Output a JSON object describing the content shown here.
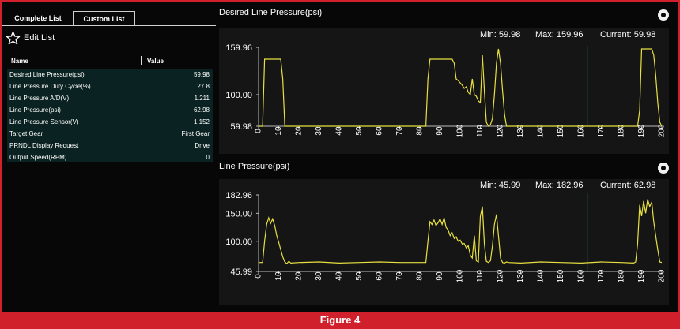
{
  "tabs": {
    "complete": "Complete List",
    "custom": "Custom List"
  },
  "edit_list": "Edit List",
  "list_header": {
    "name": "Name",
    "value": "Value"
  },
  "params": [
    {
      "name": "Desired Line Pressure(psi)",
      "value": "59.98"
    },
    {
      "name": "Line Pressure Duty Cycle(%)",
      "value": "27.8"
    },
    {
      "name": "Line Pressure A/D(V)",
      "value": "1.211"
    },
    {
      "name": "Line Pressure(psi)",
      "value": "62.98"
    },
    {
      "name": "Line Pressure Sensor(V)",
      "value": "1.152"
    },
    {
      "name": "Target Gear",
      "value": "First Gear"
    },
    {
      "name": "PRNDL Display Request",
      "value": "Drive"
    },
    {
      "name": "Output Speed(RPM)",
      "value": "0"
    }
  ],
  "caption": "Figure 4",
  "colors": {
    "frame": "#d0202c",
    "line": "#e8e040",
    "cursor": "#2aa6a6",
    "panel": "#151515",
    "list_bg": "#0a2221"
  },
  "chart_data": [
    {
      "type": "line",
      "title": "Desired Line Pressure(psi)",
      "stats": {
        "min": "Min: 59.98",
        "max": "Max: 159.96",
        "current": "Current: 59.98"
      },
      "ylim": [
        59.98,
        159.96
      ],
      "yticks": [
        "159.96",
        "100.00",
        "59.98"
      ],
      "ytick_values": [
        159.96,
        100.0,
        59.98
      ],
      "xticks": [
        "0",
        "10",
        "20",
        "30",
        "40",
        "50",
        "60",
        "70",
        "80",
        "90",
        "100",
        "110",
        "120",
        "130",
        "140",
        "150",
        "160",
        "170",
        "180",
        "190",
        "200"
      ],
      "xlim": [
        0,
        200
      ],
      "cursor_x": 163,
      "series": [
        {
          "x": [
            0,
            2,
            3,
            10,
            11,
            12,
            13,
            83,
            84,
            85,
            86,
            92,
            93,
            96,
            97,
            98,
            99,
            100,
            101,
            102,
            103,
            104,
            105,
            106,
            107,
            108,
            109,
            110,
            111,
            112,
            113,
            114,
            115,
            116,
            117,
            118,
            119,
            120,
            121,
            122,
            123,
            124,
            188,
            189,
            190,
            195,
            196,
            197,
            198,
            199,
            200
          ],
          "y": [
            60,
            60,
            145,
            145,
            145,
            120,
            60,
            60,
            120,
            145,
            145,
            145,
            145,
            145,
            140,
            120,
            118,
            115,
            112,
            108,
            110,
            103,
            100,
            120,
            100,
            98,
            92,
            90,
            150,
            105,
            65,
            60,
            62,
            70,
            100,
            140,
            158,
            140,
            105,
            75,
            60,
            60,
            60,
            80,
            158,
            158,
            150,
            125,
            90,
            65,
            60
          ]
        }
      ]
    },
    {
      "type": "line",
      "title": "Line Pressure(psi)",
      "stats": {
        "min": "Min: 45.99",
        "max": "Max: 182.96",
        "current": "Current: 62.98"
      },
      "ylim": [
        45.99,
        182.96
      ],
      "yticks": [
        "182.96",
        "150.00",
        "100.00",
        "45.99"
      ],
      "ytick_values": [
        182.96,
        150.0,
        100.0,
        45.99
      ],
      "xticks": [
        "0",
        "10",
        "20",
        "30",
        "40",
        "50",
        "60",
        "70",
        "80",
        "90",
        "100",
        "110",
        "120",
        "130",
        "140",
        "150",
        "160",
        "170",
        "180",
        "190",
        "200"
      ],
      "xlim": [
        0,
        200
      ],
      "cursor_x": 163,
      "series": [
        {
          "x": [
            0,
            2,
            3,
            4,
            5,
            6,
            7,
            8,
            9,
            10,
            11,
            12,
            13,
            14,
            15,
            16,
            20,
            30,
            40,
            50,
            60,
            70,
            80,
            83,
            84,
            85,
            86,
            87,
            88,
            89,
            90,
            91,
            92,
            93,
            94,
            95,
            96,
            97,
            98,
            99,
            100,
            101,
            102,
            103,
            104,
            105,
            106,
            107,
            108,
            109,
            110,
            111,
            112,
            113,
            114,
            115,
            116,
            117,
            118,
            119,
            120,
            121,
            122,
            123,
            124,
            130,
            140,
            150,
            160,
            170,
            180,
            186,
            187,
            188,
            189,
            190,
            191,
            192,
            193,
            194,
            195,
            196,
            197,
            198,
            199,
            200
          ],
          "y": [
            62,
            62,
            100,
            130,
            142,
            132,
            140,
            128,
            110,
            98,
            85,
            72,
            63,
            60,
            64,
            61,
            62,
            63,
            61,
            62,
            63,
            62,
            62,
            62,
            100,
            135,
            130,
            138,
            128,
            133,
            140,
            130,
            142,
            125,
            120,
            110,
            115,
            105,
            108,
            100,
            102,
            95,
            96,
            88,
            92,
            75,
            70,
            110,
            65,
            63,
            145,
            162,
            95,
            64,
            62,
            65,
            92,
            130,
            148,
            110,
            70,
            62,
            61,
            63,
            62,
            61,
            63,
            62,
            61,
            63,
            62,
            61,
            63,
            95,
            165,
            145,
            172,
            150,
            175,
            162,
            170,
            135,
            110,
            85,
            63,
            62
          ]
        }
      ]
    }
  ]
}
